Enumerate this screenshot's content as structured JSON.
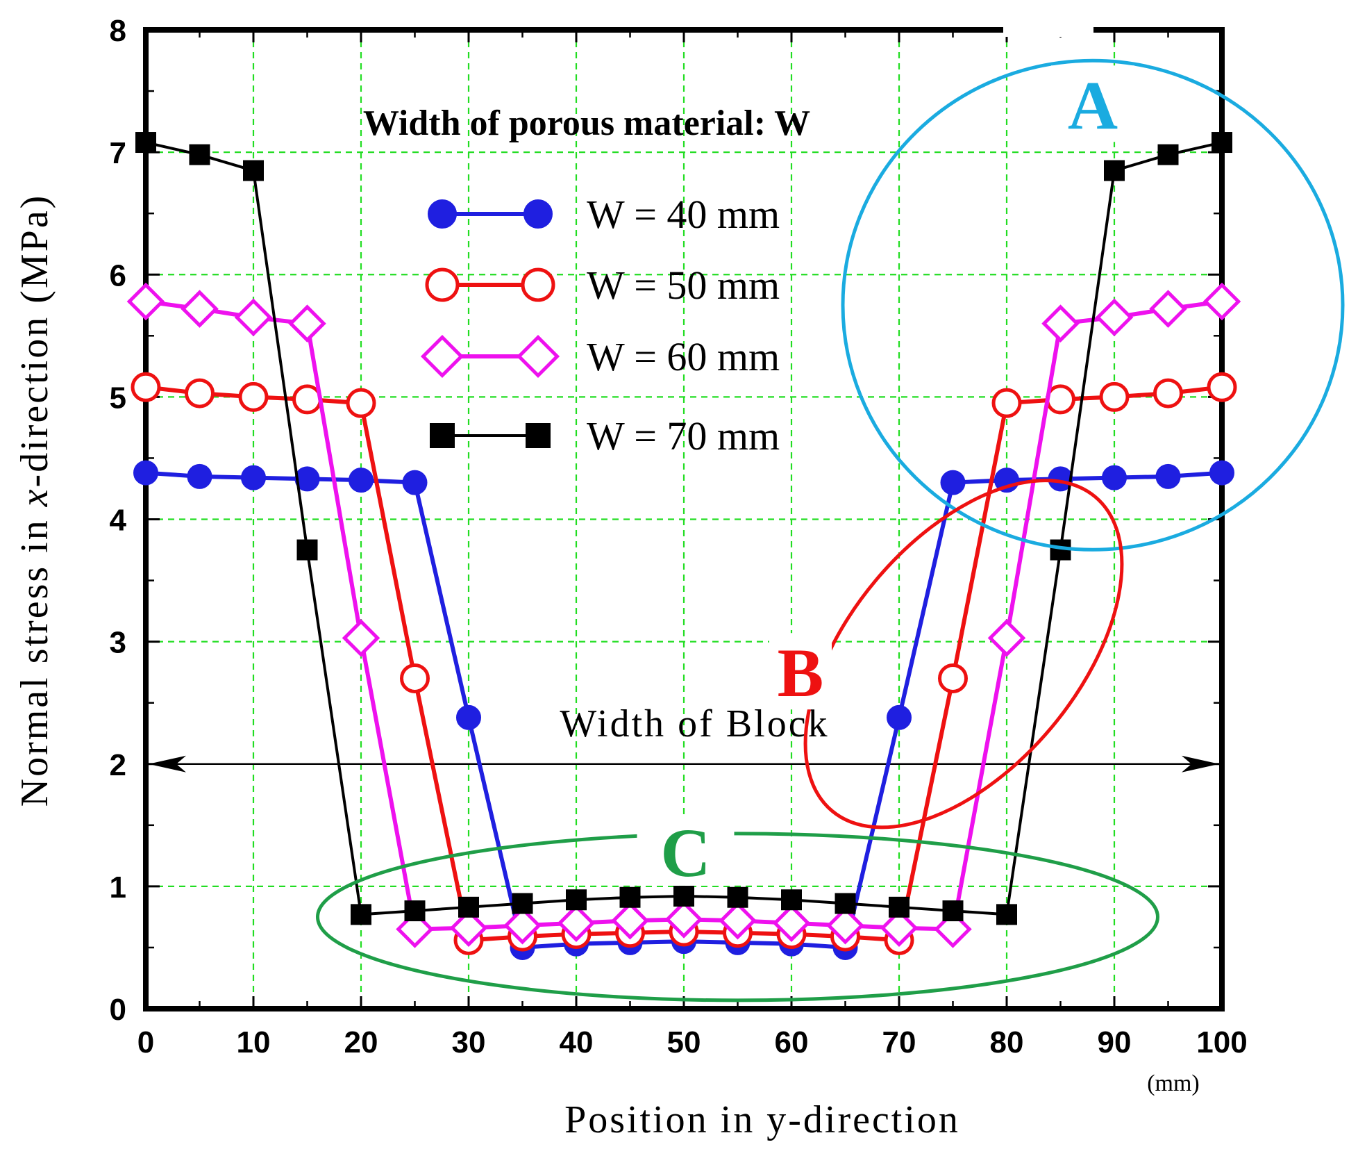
{
  "chart_data": {
    "type": "line",
    "title": "Width of porous material: W",
    "xlabel": "Position in y-direction",
    "ylabel": "Normal stress in  x-direction (MPa)",
    "ylabel_parts": {
      "prefix": "Normal stress in ",
      "italic": "x",
      "suffix": "-direction (MPa)"
    },
    "x_unit": "(mm)",
    "xlim": [
      0,
      100
    ],
    "ylim": [
      0,
      8
    ],
    "xticks": [
      0,
      10,
      20,
      30,
      40,
      50,
      60,
      70,
      80,
      90,
      100
    ],
    "yticks": [
      0,
      1,
      2,
      3,
      4,
      5,
      6,
      7,
      8
    ],
    "grid": true,
    "legend_position": "upper-center",
    "series": [
      {
        "name": "W = 40 mm",
        "color": "#1f1fe0",
        "marker": "filled-circle",
        "x": [
          0,
          5,
          10,
          15,
          20,
          25,
          30,
          35,
          40,
          45,
          50,
          55,
          60,
          65,
          70,
          75,
          80,
          85,
          90,
          95,
          100
        ],
        "y": [
          4.38,
          4.35,
          4.34,
          4.33,
          4.32,
          4.3,
          2.38,
          0.5,
          0.53,
          0.54,
          0.55,
          0.54,
          0.53,
          0.5,
          2.38,
          4.3,
          4.32,
          4.33,
          4.34,
          4.35,
          4.38
        ]
      },
      {
        "name": "W = 50 mm",
        "color": "#ee1111",
        "marker": "open-circle",
        "x": [
          0,
          5,
          10,
          15,
          20,
          25,
          30,
          35,
          40,
          45,
          50,
          55,
          60,
          65,
          70,
          75,
          80,
          85,
          90,
          95,
          100
        ],
        "y": [
          5.08,
          5.03,
          5.0,
          4.98,
          4.95,
          2.7,
          0.56,
          0.59,
          0.61,
          0.62,
          0.63,
          0.62,
          0.61,
          0.59,
          0.56,
          2.7,
          4.95,
          4.98,
          5.0,
          5.03,
          5.08
        ]
      },
      {
        "name": "W = 60 mm",
        "color": "#ee11ee",
        "marker": "open-diamond",
        "x": [
          0,
          5,
          10,
          15,
          20,
          25,
          30,
          35,
          40,
          45,
          50,
          55,
          60,
          65,
          70,
          75,
          80,
          85,
          90,
          95,
          100
        ],
        "y": [
          5.78,
          5.72,
          5.65,
          5.6,
          3.03,
          0.65,
          0.66,
          0.68,
          0.7,
          0.72,
          0.73,
          0.72,
          0.7,
          0.68,
          0.66,
          0.65,
          3.03,
          5.6,
          5.65,
          5.72,
          5.78
        ]
      },
      {
        "name": "W = 70 mm",
        "color": "#000000",
        "marker": "filled-square",
        "x": [
          0,
          5,
          10,
          15,
          20,
          25,
          30,
          35,
          40,
          45,
          50,
          55,
          60,
          65,
          70,
          75,
          80,
          85,
          90,
          95,
          100
        ],
        "y": [
          7.08,
          6.98,
          6.85,
          3.75,
          0.77,
          0.8,
          0.83,
          0.86,
          0.89,
          0.91,
          0.92,
          0.91,
          0.89,
          0.86,
          0.83,
          0.8,
          0.77,
          3.75,
          6.85,
          6.98,
          7.08
        ]
      }
    ],
    "annotations": [
      {
        "label": "A",
        "color": "#1aabe0",
        "center": [
          88,
          5.75
        ]
      },
      {
        "label": "B",
        "color": "#ee1111",
        "center": [
          76,
          2.9
        ]
      },
      {
        "label": "C",
        "color": "#1f9e48",
        "center": [
          55,
          0.75
        ]
      }
    ],
    "block_label": "Width of Block",
    "block_y": 2,
    "block_range": [
      0,
      100
    ]
  }
}
